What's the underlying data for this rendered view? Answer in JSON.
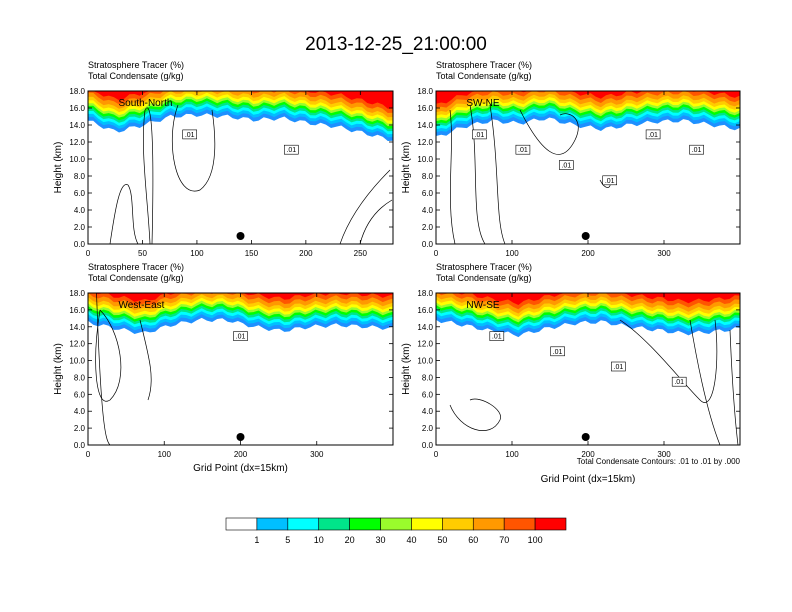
{
  "title": "2013-12-25_21:00:00",
  "footnote": "Total Condensate Contours: .01 to .01 by .000",
  "colorbar": {
    "levels": [
      "1",
      "5",
      "10",
      "20",
      "30",
      "40",
      "50",
      "60",
      "70",
      "100"
    ],
    "colors": [
      "#ffffff",
      "#1e90ff",
      "#00bfff",
      "#00ffff",
      "#00e58a",
      "#00ff00",
      "#9afc2c",
      "#ffff00",
      "#ffcc00",
      "#ff9900",
      "#ff5500",
      "#ff0000"
    ]
  },
  "chart_data": [
    {
      "type": "heatmap",
      "panel": "South-North",
      "label": "South-North",
      "subtitle_1": "Stratosphere Tracer   (%)",
      "subtitle_2": "Total Condensate   (g/kg)",
      "ylabel": "Height (km)",
      "xlabel": "",
      "xlim": [
        0,
        280
      ],
      "ylim": [
        0,
        18
      ],
      "xticks": [
        "0",
        "50",
        "100",
        "150",
        "200",
        "250"
      ],
      "yticks": [
        "0.0",
        "2.0",
        "4.0",
        "6.0",
        "8.0",
        "10.0",
        "12.0",
        "14.0",
        "16.0",
        "18.0"
      ],
      "contour_labels": [
        ".01",
        ".01"
      ],
      "marker_x": 140,
      "tropopause_height_km": [
        15.5,
        14.2,
        15.0,
        16.0,
        16.2,
        16.0,
        15.6,
        15.8,
        15.2,
        14.8,
        14.0,
        13.2
      ]
    },
    {
      "type": "heatmap",
      "panel": "SW-NE",
      "label": "SW-NE",
      "subtitle_1": "Stratosphere Tracer   (%)",
      "subtitle_2": "Total Condensate   (g/kg)",
      "ylabel": "Height (km)",
      "xlabel": "",
      "xlim": [
        0,
        400
      ],
      "ylim": [
        0,
        18
      ],
      "xticks": [
        "0",
        "100",
        "200",
        "300"
      ],
      "yticks": [
        "0.0",
        "2.0",
        "4.0",
        "6.0",
        "8.0",
        "10.0",
        "12.0",
        "14.0",
        "16.0",
        "18.0"
      ],
      "contour_labels": [
        ".01",
        ".01",
        ".01",
        ".01",
        ".01",
        ".01"
      ],
      "marker_x": 197,
      "tropopause_height_km": [
        13.5,
        14.8,
        15.5,
        15.2,
        15.8,
        15.0,
        14.5,
        15.0,
        15.4,
        15.5,
        15.0,
        14.5
      ]
    },
    {
      "type": "heatmap",
      "panel": "West-East",
      "label": "West-East",
      "subtitle_1": "Stratosphere Tracer   (%)",
      "subtitle_2": "Total Condensate   (g/kg)",
      "ylabel": "Height (km)",
      "xlabel": "Grid Point (dx=15km)",
      "xlim": [
        0,
        400
      ],
      "ylim": [
        0,
        18
      ],
      "xticks": [
        "0",
        "100",
        "200",
        "300"
      ],
      "yticks": [
        "0.0",
        "2.0",
        "4.0",
        "6.0",
        "8.0",
        "10.0",
        "12.0",
        "14.0",
        "16.0",
        "18.0"
      ],
      "contour_labels": [
        ".01"
      ],
      "marker_x": 200,
      "tropopause_height_km": [
        15.5,
        14.8,
        14.2,
        15.2,
        15.8,
        15.8,
        15.0,
        14.5,
        15.0,
        15.2,
        15.0,
        14.8
      ]
    },
    {
      "type": "heatmap",
      "panel": "NW-SE",
      "label": "NW-SE",
      "subtitle_1": "Stratosphere Tracer   (%)",
      "subtitle_2": "Total Condensate   (g/kg)",
      "ylabel": "Height (km)",
      "xlabel": "Grid Point (dx=15km)",
      "xlim": [
        0,
        400
      ],
      "ylim": [
        0,
        18
      ],
      "xticks": [
        "0",
        "100",
        "200",
        "300"
      ],
      "yticks": [
        "0.0",
        "2.0",
        "4.0",
        "6.0",
        "8.0",
        "10.0",
        "12.0",
        "14.0",
        "16.0",
        "18.0"
      ],
      "contour_labels": [
        ".01",
        ".01",
        ".01",
        ".01"
      ],
      "marker_x": 197,
      "tropopause_height_km": [
        15.8,
        15.2,
        14.5,
        14.0,
        14.8,
        15.4,
        15.6,
        15.0,
        14.6,
        14.2,
        14.4,
        14.8
      ]
    }
  ]
}
